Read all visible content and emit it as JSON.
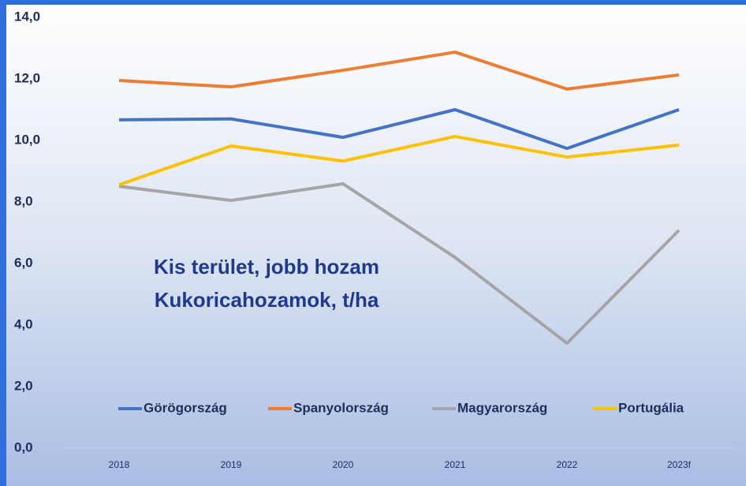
{
  "chart_data": {
    "type": "line",
    "title": "Kis terület, jobb hozam",
    "subtitle": "Kukoricahozamok, t/ha",
    "categories": [
      "2018",
      "2019",
      "2020",
      "2021",
      "2022",
      "2023f"
    ],
    "series": [
      {
        "name": "Görögország",
        "color": "#4472c4",
        "values": [
          10.67,
          10.7,
          10.1,
          11.0,
          9.74,
          11.0
        ]
      },
      {
        "name": "Spanyolország",
        "color": "#ed7d31",
        "values": [
          11.95,
          11.74,
          12.28,
          12.87,
          11.67,
          12.13
        ]
      },
      {
        "name": "Magyarország",
        "color": "#a5a5a5",
        "values": [
          8.51,
          8.05,
          8.59,
          6.2,
          3.41,
          7.08
        ]
      },
      {
        "name": "Portugália",
        "color": "#ffc000",
        "values": [
          8.56,
          9.82,
          9.33,
          10.13,
          9.46,
          9.85
        ]
      }
    ],
    "ylim": [
      0,
      14
    ],
    "yticks": [
      {
        "value": 0,
        "label": "0,0"
      },
      {
        "value": 2,
        "label": "2,0"
      },
      {
        "value": 4,
        "label": "4,0"
      },
      {
        "value": 6,
        "label": "6,0"
      },
      {
        "value": 8,
        "label": "8,0"
      },
      {
        "value": 10,
        "label": "10,0"
      },
      {
        "value": 12,
        "label": "12,0"
      },
      {
        "value": 14,
        "label": "14,0"
      }
    ],
    "legend": "bottom"
  }
}
